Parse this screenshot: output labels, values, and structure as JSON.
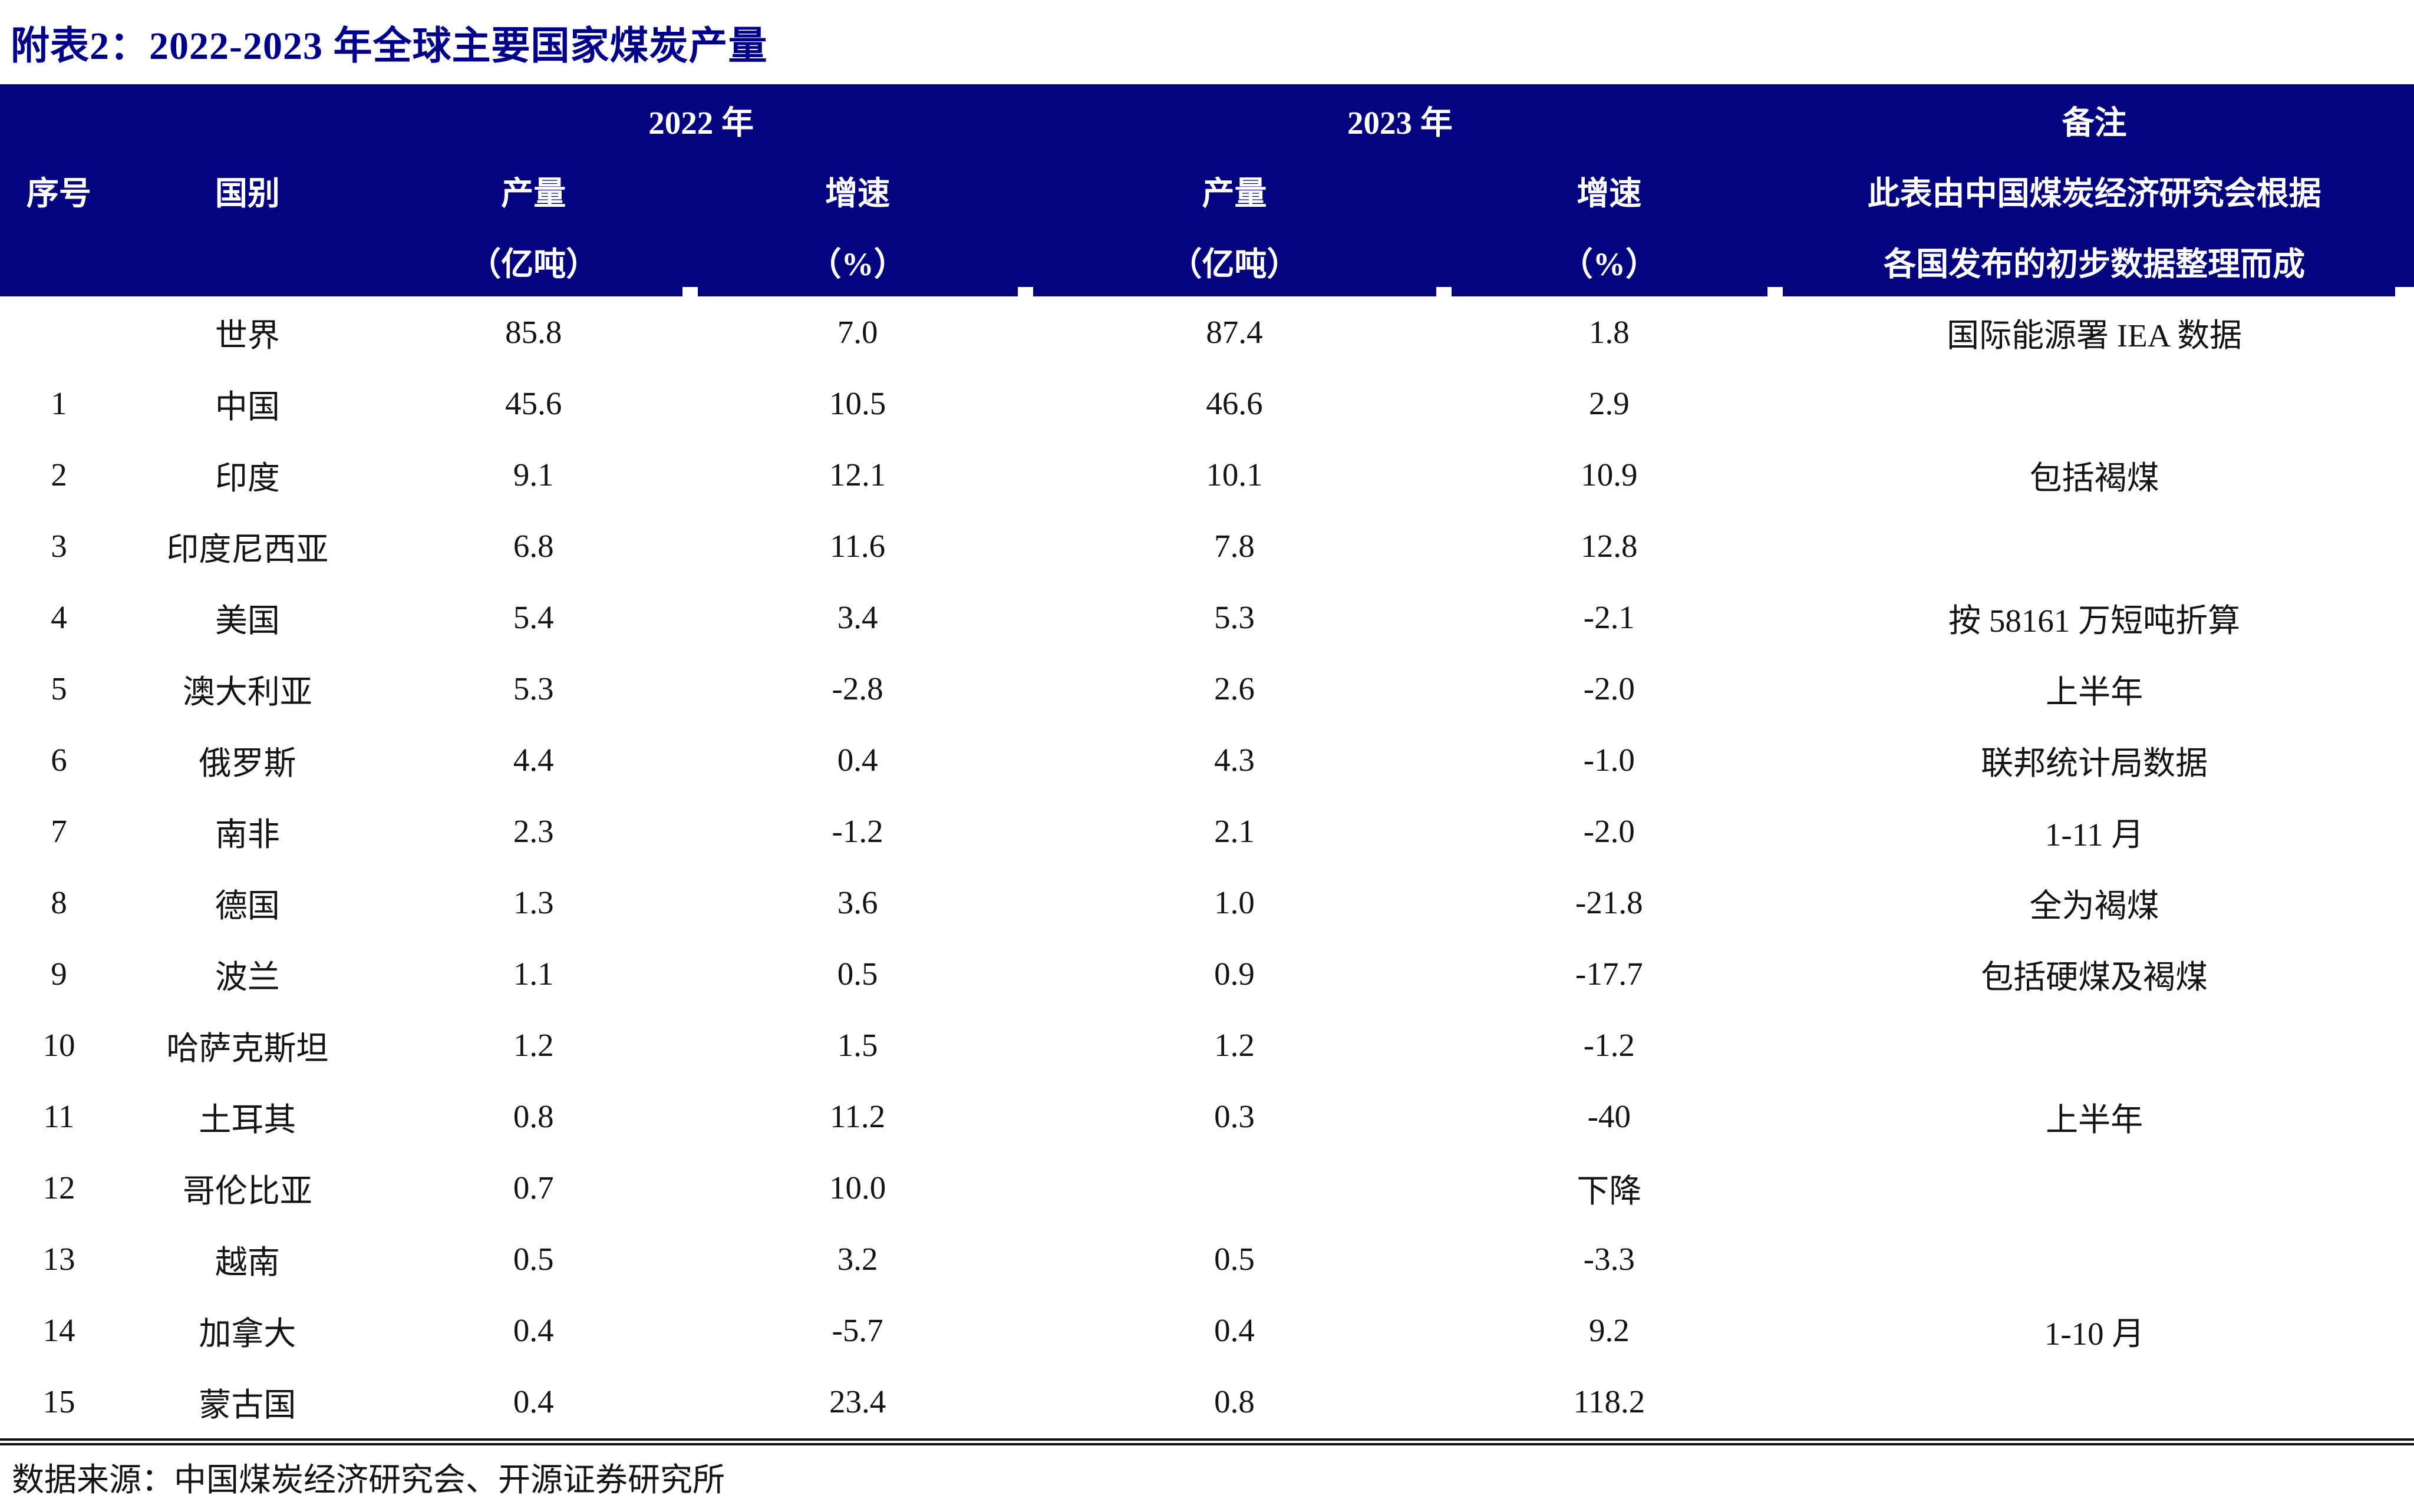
{
  "page": {
    "title": "附表2：2022-2023 年全球主要国家煤炭产量",
    "source": "数据来源：中国煤炭经济研究会、开源证券研究所"
  },
  "colors": {
    "header_bg": "#04047e",
    "title_text": "#00008b",
    "header_text": "#ffffff",
    "body_text": "#141414"
  },
  "table": {
    "year_group_2022": "2022 年",
    "year_group_2023": "2023 年",
    "col_index": "序号",
    "col_country": "国别",
    "col_output": "产量",
    "col_growth": "增速",
    "unit_output": "（亿吨）",
    "unit_growth": "（%）",
    "remark_title": "备注",
    "remark_line1": "此表由中国煤炭经济研究会根据",
    "remark_line2": "各国发布的初步数据整理而成",
    "rows": [
      {
        "no": "",
        "country": "世界",
        "out22": "85.8",
        "gr22": "7.0",
        "out23": "87.4",
        "gr23": "1.8",
        "remark": "国际能源署 IEA 数据"
      },
      {
        "no": "1",
        "country": "中国",
        "out22": "45.6",
        "gr22": "10.5",
        "out23": "46.6",
        "gr23": "2.9",
        "remark": ""
      },
      {
        "no": "2",
        "country": "印度",
        "out22": "9.1",
        "gr22": "12.1",
        "out23": "10.1",
        "gr23": "10.9",
        "remark": "包括褐煤"
      },
      {
        "no": "3",
        "country": "印度尼西亚",
        "out22": "6.8",
        "gr22": "11.6",
        "out23": "7.8",
        "gr23": "12.8",
        "remark": ""
      },
      {
        "no": "4",
        "country": "美国",
        "out22": "5.4",
        "gr22": "3.4",
        "out23": "5.3",
        "gr23": "-2.1",
        "remark": "按 58161 万短吨折算"
      },
      {
        "no": "5",
        "country": "澳大利亚",
        "out22": "5.3",
        "gr22": "-2.8",
        "out23": "2.6",
        "gr23": "-2.0",
        "remark": "上半年"
      },
      {
        "no": "6",
        "country": "俄罗斯",
        "out22": "4.4",
        "gr22": "0.4",
        "out23": "4.3",
        "gr23": "-1.0",
        "remark": "联邦统计局数据"
      },
      {
        "no": "7",
        "country": "南非",
        "out22": "2.3",
        "gr22": "-1.2",
        "out23": "2.1",
        "gr23": "-2.0",
        "remark": "1-11 月"
      },
      {
        "no": "8",
        "country": "德国",
        "out22": "1.3",
        "gr22": "3.6",
        "out23": "1.0",
        "gr23": "-21.8",
        "remark": "全为褐煤"
      },
      {
        "no": "9",
        "country": "波兰",
        "out22": "1.1",
        "gr22": "0.5",
        "out23": "0.9",
        "gr23": "-17.7",
        "remark": "包括硬煤及褐煤"
      },
      {
        "no": "10",
        "country": "哈萨克斯坦",
        "out22": "1.2",
        "gr22": "1.5",
        "out23": "1.2",
        "gr23": "-1.2",
        "remark": ""
      },
      {
        "no": "11",
        "country": "土耳其",
        "out22": "0.8",
        "gr22": "11.2",
        "out23": "0.3",
        "gr23": "-40",
        "remark": "上半年"
      },
      {
        "no": "12",
        "country": "哥伦比亚",
        "out22": "0.7",
        "gr22": "10.0",
        "out23": "",
        "gr23": "下降",
        "remark": ""
      },
      {
        "no": "13",
        "country": "越南",
        "out22": "0.5",
        "gr22": "3.2",
        "out23": "0.5",
        "gr23": "-3.3",
        "remark": ""
      },
      {
        "no": "14",
        "country": "加拿大",
        "out22": "0.4",
        "gr22": "-5.7",
        "out23": "0.4",
        "gr23": "9.2",
        "remark": "1-10 月"
      },
      {
        "no": "15",
        "country": "蒙古国",
        "out22": "0.4",
        "gr22": "23.4",
        "out23": "0.8",
        "gr23": "118.2",
        "remark": ""
      }
    ]
  },
  "chart_data": {
    "type": "table",
    "title": "附表2：2022-2023 年全球主要国家煤炭产量",
    "columns": [
      "序号",
      "国别",
      "2022年产量（亿吨）",
      "2022年增速（%）",
      "2023年产量（亿吨）",
      "2023年增速（%）",
      "备注"
    ],
    "rows": [
      [
        "",
        "世界",
        "85.8",
        "7.0",
        "87.4",
        "1.8",
        "国际能源署 IEA 数据"
      ],
      [
        "1",
        "中国",
        "45.6",
        "10.5",
        "46.6",
        "2.9",
        ""
      ],
      [
        "2",
        "印度",
        "9.1",
        "12.1",
        "10.1",
        "10.9",
        "包括褐煤"
      ],
      [
        "3",
        "印度尼西亚",
        "6.8",
        "11.6",
        "7.8",
        "12.8",
        ""
      ],
      [
        "4",
        "美国",
        "5.4",
        "3.4",
        "5.3",
        "-2.1",
        "按 58161 万短吨折算"
      ],
      [
        "5",
        "澳大利亚",
        "5.3",
        "-2.8",
        "2.6",
        "-2.0",
        "上半年"
      ],
      [
        "6",
        "俄罗斯",
        "4.4",
        "0.4",
        "4.3",
        "-1.0",
        "联邦统计局数据"
      ],
      [
        "7",
        "南非",
        "2.3",
        "-1.2",
        "2.1",
        "-2.0",
        "1-11 月"
      ],
      [
        "8",
        "德国",
        "1.3",
        "3.6",
        "1.0",
        "-21.8",
        "全为褐煤"
      ],
      [
        "9",
        "波兰",
        "1.1",
        "0.5",
        "0.9",
        "-17.7",
        "包括硬煤及褐煤"
      ],
      [
        "10",
        "哈萨克斯坦",
        "1.2",
        "1.5",
        "1.2",
        "-1.2",
        ""
      ],
      [
        "11",
        "土耳其",
        "0.8",
        "11.2",
        "0.3",
        "-40",
        "上半年"
      ],
      [
        "12",
        "哥伦比亚",
        "0.7",
        "10.0",
        "",
        "下降",
        ""
      ],
      [
        "13",
        "越南",
        "0.5",
        "3.2",
        "0.5",
        "-3.3",
        ""
      ],
      [
        "14",
        "加拿大",
        "0.4",
        "-5.7",
        "0.4",
        "9.2",
        "1-10 月"
      ],
      [
        "15",
        "蒙古国",
        "0.4",
        "23.4",
        "0.8",
        "118.2",
        ""
      ]
    ]
  }
}
